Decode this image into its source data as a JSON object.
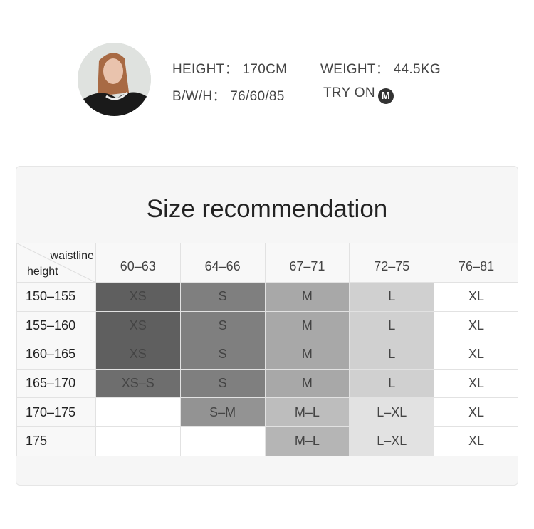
{
  "model": {
    "height_label": "HEIGHT：",
    "height": "170CM",
    "weight_label": "WEIGHT：",
    "weight": "44.5KG",
    "bwh_label": "B/W/H：",
    "bwh": "76/60/85",
    "try_on_label": "TRY ON",
    "try_on_size": "M"
  },
  "table": {
    "title": "Size recommendation",
    "corner_col_label": "waistline",
    "corner_row_label": "height",
    "columns": [
      "60–63",
      "64–66",
      "67–71",
      "72–75",
      "76–81"
    ],
    "rows": [
      {
        "height": "150–155",
        "cells": [
          {
            "t": "XS",
            "c": "#5f5f5f"
          },
          {
            "t": "S",
            "c": "#7f7f7f"
          },
          {
            "t": "M",
            "c": "#a8a8a8"
          },
          {
            "t": "L",
            "c": "#d0d0d0"
          },
          {
            "t": "XL",
            "c": "#ffffff"
          }
        ]
      },
      {
        "height": "155–160",
        "cells": [
          {
            "t": "XS",
            "c": "#5f5f5f"
          },
          {
            "t": "S",
            "c": "#7f7f7f"
          },
          {
            "t": "M",
            "c": "#a8a8a8"
          },
          {
            "t": "L",
            "c": "#d0d0d0"
          },
          {
            "t": "XL",
            "c": "#ffffff"
          }
        ]
      },
      {
        "height": "160–165",
        "cells": [
          {
            "t": "XS",
            "c": "#5f5f5f"
          },
          {
            "t": "S",
            "c": "#7f7f7f"
          },
          {
            "t": "M",
            "c": "#a8a8a8"
          },
          {
            "t": "L",
            "c": "#d0d0d0"
          },
          {
            "t": "XL",
            "c": "#ffffff"
          }
        ]
      },
      {
        "height": "165–170",
        "cells": [
          {
            "t": "XS–S",
            "c": "#6e6e6e"
          },
          {
            "t": "S",
            "c": "#7f7f7f"
          },
          {
            "t": "M",
            "c": "#a8a8a8"
          },
          {
            "t": "L",
            "c": "#d0d0d0"
          },
          {
            "t": "XL",
            "c": "#ffffff"
          }
        ]
      },
      {
        "height": "170–175",
        "cells": [
          {
            "t": "",
            "c": "#ffffff"
          },
          {
            "t": "S–M",
            "c": "#939393"
          },
          {
            "t": "M–L",
            "c": "#bdbdbd"
          },
          {
            "t": "L–XL",
            "c": "#e2e2e2"
          },
          {
            "t": "XL",
            "c": "#ffffff"
          }
        ]
      },
      {
        "height": "175",
        "cells": [
          {
            "t": "",
            "c": "#ffffff"
          },
          {
            "t": "",
            "c": "#ffffff"
          },
          {
            "t": "M–L",
            "c": "#b5b5b5"
          },
          {
            "t": "L–XL",
            "c": "#e2e2e2"
          },
          {
            "t": "XL",
            "c": "#ffffff"
          }
        ]
      }
    ]
  }
}
